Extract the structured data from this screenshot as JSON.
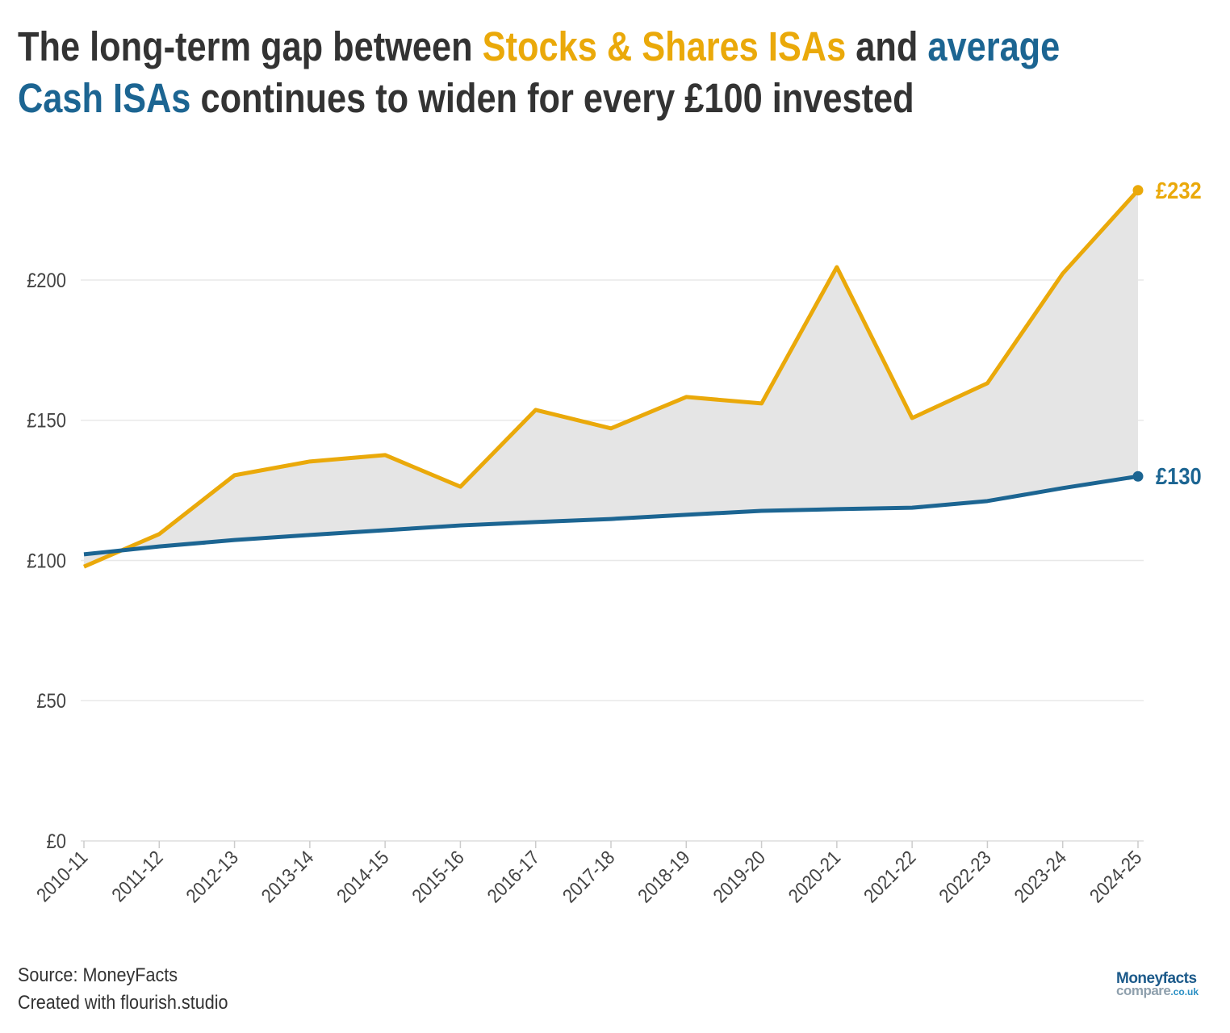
{
  "title": {
    "part1": "The long-term gap between ",
    "part2": "Stocks & Shares ISAs",
    "part3": " and ",
    "part4": "average",
    "part5": "Cash ISAs",
    "part6": " continues to widen for every £100 invested"
  },
  "chart_data": {
    "type": "area",
    "title": "The long-term gap between Stocks & Shares ISAs and average Cash ISAs continues to widen for every £100 invested",
    "xlabel": "",
    "ylabel": "",
    "categories": [
      "2010-11",
      "2011-12",
      "2012-13",
      "2013-14",
      "2014-15",
      "2015-16",
      "2016-17",
      "2017-18",
      "2018-19",
      "2019-20",
      "2020-21",
      "2021-22",
      "2022-23",
      "2023-24",
      "2024-25"
    ],
    "series": [
      {
        "name": "Stocks & Shares ISAs",
        "color": "#eaa90a",
        "values": [
          97.8,
          109.4,
          130.4,
          135.3,
          137.6,
          126.3,
          153.7,
          147.1,
          158.3,
          156.0,
          204.6,
          150.8,
          163.2,
          202.3,
          232
        ]
      },
      {
        "name": "average Cash ISAs",
        "color": "#1c6592",
        "values": [
          102.2,
          105.0,
          107.3,
          109.1,
          110.8,
          112.5,
          113.7,
          114.8,
          116.3,
          117.7,
          118.3,
          118.8,
          121.2,
          125.8,
          130
        ]
      }
    ],
    "end_labels": [
      "£232",
      "£130"
    ],
    "ylim": [
      0,
      240
    ],
    "yticks": [
      0,
      50,
      100,
      150,
      200
    ],
    "ytick_labels": [
      "£0",
      "£50",
      "£100",
      "£150",
      "£200"
    ],
    "fill_between_color": "#e5e5e5",
    "grid": true,
    "legend": "none"
  },
  "footer": {
    "source": "Source: MoneyFacts",
    "credit": "Created with flourish.studio"
  },
  "logo": {
    "line1": "Moneyfacts",
    "line2": "compare",
    "line3": ".co.uk"
  }
}
